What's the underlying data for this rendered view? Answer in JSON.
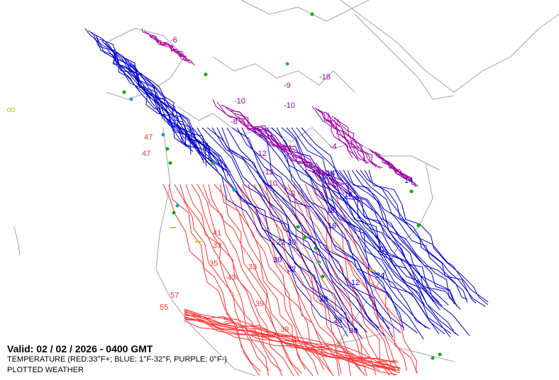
{
  "map": {
    "valid_label": "Valid: 02 / 02 / 2026  -  0400 GMT",
    "field_label": "TEMPERATURE (RED:33°F+; BLUE: 1°F-32°F, PURPLE: 0°F-)",
    "layer_label": "PLOTTED WEATHER",
    "colors": {
      "warm": "#ff3333",
      "cold": "#0000cc",
      "frigid": "#a000a0",
      "coast": "#a0a0b8",
      "weather_green": "#00b000",
      "weather_cyan": "#00b0b0",
      "weather_yellow": "#d0c000"
    },
    "contour_labels": [
      {
        "text": "-6",
        "color": "frigid"
      },
      {
        "text": "-18",
        "color": "frigid"
      },
      {
        "text": "-9",
        "color": "frigid"
      },
      {
        "text": "-10",
        "color": "frigid"
      },
      {
        "text": "-10",
        "color": "frigid"
      },
      {
        "text": "-8",
        "color": "frigid"
      },
      {
        "text": "-12",
        "color": "frigid"
      },
      {
        "text": "-14",
        "color": "frigid"
      },
      {
        "text": "-12",
        "color": "frigid"
      },
      {
        "text": "-10",
        "color": "frigid"
      },
      {
        "text": "0",
        "color": "frigid"
      },
      {
        "text": "-4",
        "color": "frigid"
      },
      {
        "text": "14",
        "color": "cold"
      },
      {
        "text": "16",
        "color": "cold"
      },
      {
        "text": "18",
        "color": "cold"
      },
      {
        "text": "16",
        "color": "cold"
      },
      {
        "text": "20",
        "color": "cold"
      },
      {
        "text": "22",
        "color": "cold"
      },
      {
        "text": "30",
        "color": "cold"
      },
      {
        "text": "32",
        "color": "cold"
      },
      {
        "text": "28",
        "color": "cold"
      },
      {
        "text": "28",
        "color": "cold"
      },
      {
        "text": "30",
        "color": "cold"
      },
      {
        "text": "24",
        "color": "cold"
      },
      {
        "text": "22",
        "color": "cold"
      },
      {
        "text": "12",
        "color": "cold"
      },
      {
        "text": "14",
        "color": "cold"
      },
      {
        "text": "47",
        "color": "warm"
      },
      {
        "text": "47",
        "color": "warm"
      },
      {
        "text": "41",
        "color": "warm"
      },
      {
        "text": "37",
        "color": "warm"
      },
      {
        "text": "35",
        "color": "warm"
      },
      {
        "text": "33",
        "color": "warm"
      },
      {
        "text": "43",
        "color": "warm"
      },
      {
        "text": "57",
        "color": "warm"
      },
      {
        "text": "55",
        "color": "warm"
      },
      {
        "text": "39",
        "color": "warm"
      },
      {
        "text": "53",
        "color": "warm"
      },
      {
        "text": "39",
        "color": "warm"
      }
    ]
  }
}
